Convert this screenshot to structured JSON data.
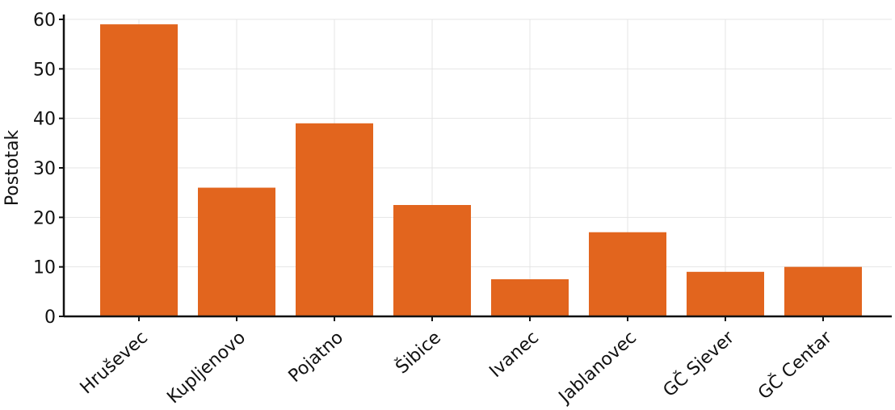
{
  "chart_data": {
    "type": "bar",
    "title": "",
    "xlabel": "",
    "ylabel": "Postotak",
    "ylim": [
      0,
      60
    ],
    "yticks": [
      0,
      10,
      20,
      30,
      40,
      50,
      60
    ],
    "grid": true,
    "categories": [
      "Hruševec",
      "Kupljenovo",
      "Pojatno",
      "Šibice",
      "Ivanec",
      "Jablanovec",
      "GČ Sjever",
      "GČ Centar"
    ],
    "values": [
      59,
      26,
      39,
      22.5,
      7.5,
      17,
      9,
      10
    ],
    "bar_color": "#e2651e"
  }
}
